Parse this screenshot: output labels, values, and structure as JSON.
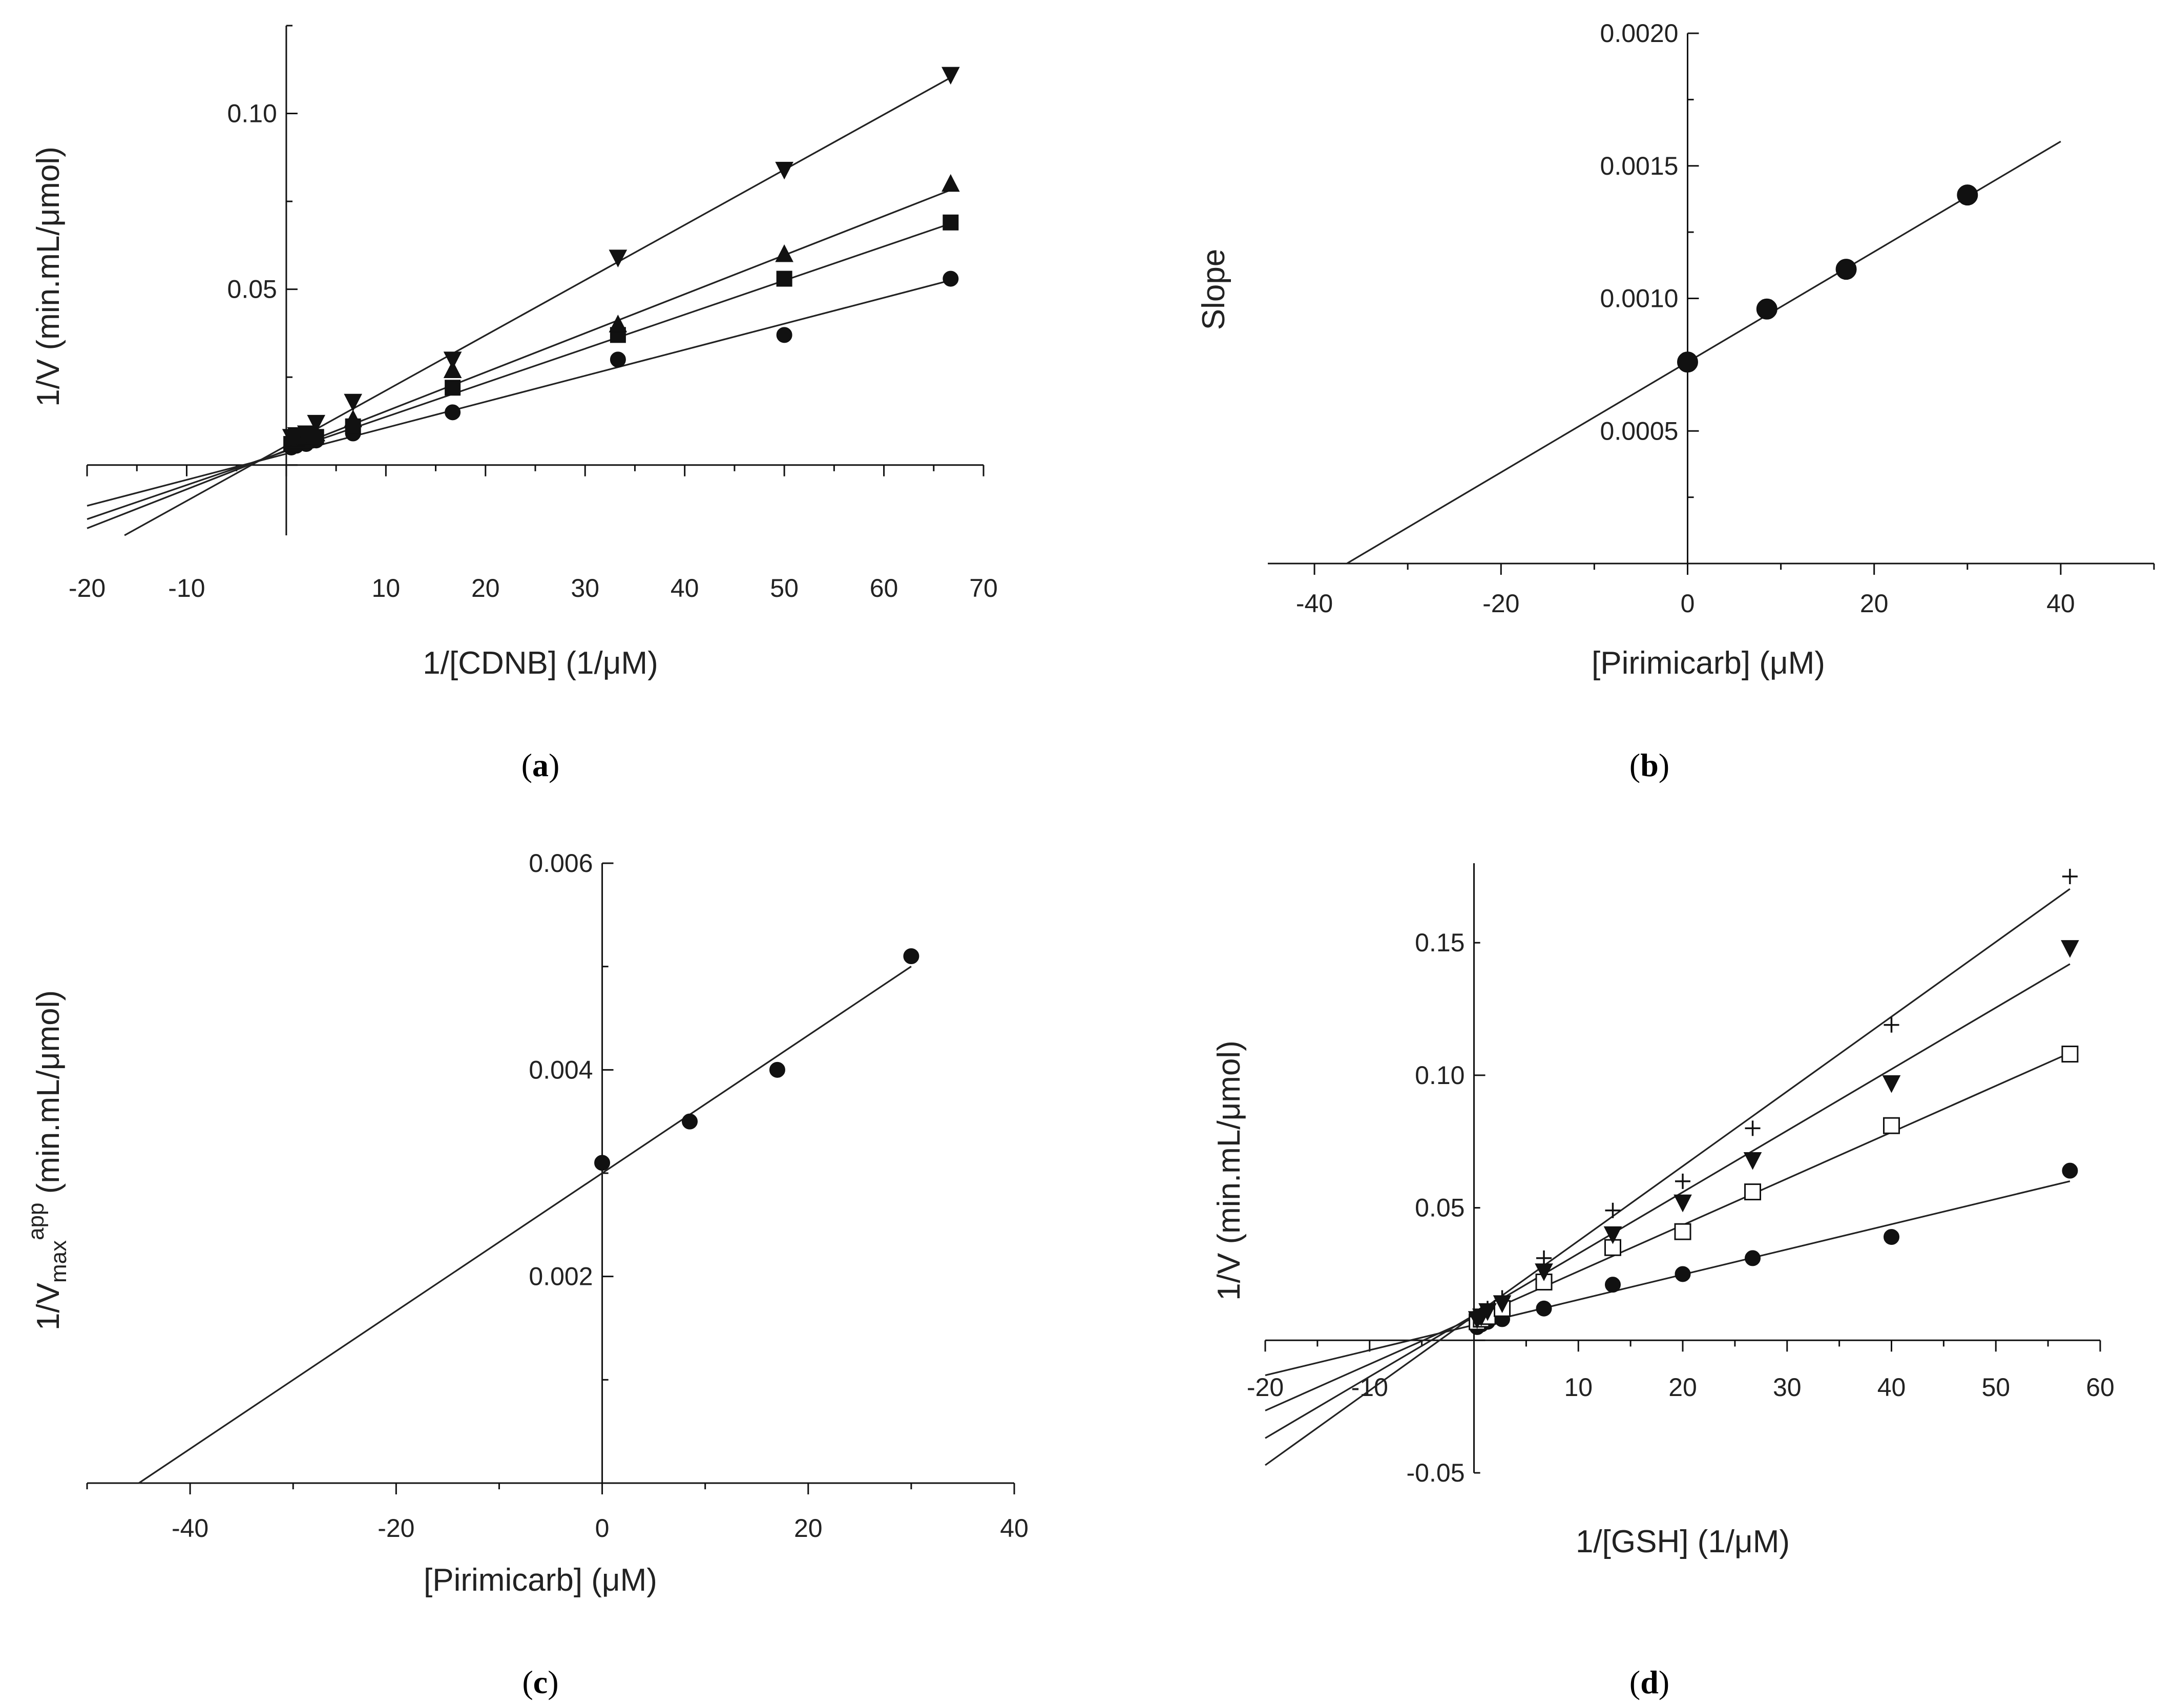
{
  "chart_data": [
    {
      "panel": "a",
      "type": "scatter",
      "caption_open": "(",
      "caption_letter": "a",
      "caption_close": ")",
      "xlabel": "1/[CDNB] (1/μM)",
      "ylabel": "1/V (min.mL/μmol)",
      "xlim": [
        -20,
        70
      ],
      "ylim": [
        -0.02,
        0.125
      ],
      "xticks": [
        -20,
        -10,
        10,
        20,
        30,
        40,
        50,
        60,
        70
      ],
      "yticks": [
        0.05,
        0.1
      ],
      "xtick_labels": [
        "-20",
        "-10",
        "10",
        "20",
        "30",
        "40",
        "50",
        "60",
        "70"
      ],
      "ytick_labels": [
        "0.05",
        "0.10"
      ],
      "series": [
        {
          "marker": "circle",
          "fit": [
            0.00074,
            0.0032
          ],
          "x": [
            0.5,
            1,
            2,
            3,
            6.7,
            16.7,
            33.3,
            50,
            66.7
          ],
          "y": [
            0.005,
            0.0055,
            0.006,
            0.007,
            0.009,
            0.015,
            0.03,
            0.037,
            0.053
          ]
        },
        {
          "marker": "square",
          "fit": [
            0.00097,
            0.004
          ],
          "x": [
            0.5,
            1,
            2,
            3,
            6.7,
            16.7,
            33.3,
            50,
            66.7
          ],
          "y": [
            0.006,
            0.0065,
            0.007,
            0.008,
            0.011,
            0.022,
            0.037,
            0.053,
            0.069
          ]
        },
        {
          "marker": "triangle-up",
          "fit": [
            0.00111,
            0.0042
          ],
          "x": [
            0.5,
            1,
            2,
            3,
            6.7,
            16.7,
            33.3,
            50,
            66.7
          ],
          "y": [
            0.007,
            0.0075,
            0.008,
            0.009,
            0.013,
            0.027,
            0.04,
            0.06,
            0.08
          ]
        },
        {
          "marker": "triangle-down",
          "fit": [
            0.00157,
            0.0055
          ],
          "x": [
            0.5,
            1,
            2,
            3,
            6.7,
            16.7,
            33.3,
            50,
            66.7
          ],
          "y": [
            0.008,
            0.0085,
            0.009,
            0.012,
            0.018,
            0.03,
            0.059,
            0.084,
            0.111
          ]
        }
      ]
    },
    {
      "panel": "b",
      "type": "scatter",
      "caption_open": "(",
      "caption_letter": "b",
      "caption_close": ")",
      "xlabel": "[Pirimicarb] (μM)",
      "ylabel": "Slope",
      "xlim": [
        -45,
        50
      ],
      "ylim": [
        0,
        0.002
      ],
      "xticks": [
        -40,
        -20,
        0,
        20,
        40
      ],
      "yticks": [
        0.0005,
        0.001,
        0.0015,
        0.002
      ],
      "xtick_labels": [
        "-40",
        "-20",
        "0",
        "20",
        "40"
      ],
      "ytick_labels": [
        "0.0005",
        "0.0010",
        "0.0015",
        "0.0020"
      ],
      "series": [
        {
          "marker": "circle-large",
          "fit": [
            2.08e-05,
            0.00076
          ],
          "fit_range": [
            -36.5,
            40
          ],
          "x": [
            0,
            8.5,
            17,
            30
          ],
          "y": [
            0.00076,
            0.00096,
            0.00111,
            0.00139
          ]
        }
      ]
    },
    {
      "panel": "c",
      "type": "scatter",
      "caption_open": "(",
      "caption_letter": "c",
      "caption_close": ")",
      "xlabel": "[Pirimicarb] (μM)",
      "ylabel": "1/V",
      "ylabel_sub": "max",
      "ylabel_sup": "app",
      "ylabel_rest": " (min.mL/μmol)",
      "xlim": [
        -50,
        40
      ],
      "ylim": [
        0,
        0.006
      ],
      "xticks": [
        -40,
        -20,
        0,
        20,
        40
      ],
      "yticks": [
        0.002,
        0.004,
        0.006
      ],
      "xtick_labels": [
        "-40",
        "-20",
        "0",
        "20",
        "40"
      ],
      "ytick_labels": [
        "0.002",
        "0.004",
        "0.006"
      ],
      "series": [
        {
          "marker": "circle",
          "fit": [
            6.67e-05,
            0.003
          ],
          "fit_range": [
            -45,
            30
          ],
          "x": [
            0,
            8.5,
            17,
            30
          ],
          "y": [
            0.0031,
            0.0035,
            0.004,
            0.0051
          ]
        }
      ]
    },
    {
      "panel": "d",
      "type": "scatter",
      "caption_open": "(",
      "caption_letter": "d",
      "caption_close": ")",
      "xlabel": "1/[GSH] (1/μM)",
      "ylabel": "1/V (min.mL/μmol)",
      "xlim": [
        -20,
        60
      ],
      "ylim": [
        -0.05,
        0.18
      ],
      "xticks": [
        -20,
        -10,
        10,
        20,
        30,
        40,
        50,
        60
      ],
      "yticks": [
        -0.05,
        0.05,
        0.1,
        0.15
      ],
      "xtick_labels": [
        "-20",
        "-10",
        "10",
        "20",
        "30",
        "40",
        "50",
        "60"
      ],
      "ytick_labels": [
        "-0.05",
        "0.05",
        "0.10",
        "0.15"
      ],
      "series": [
        {
          "marker": "circle",
          "fit": [
            0.00095,
            0.0058
          ],
          "x": [
            0.3,
            0.7,
            1.3,
            2.7,
            6.7,
            13.3,
            20,
            26.7,
            40,
            57.1
          ],
          "y": [
            0.005,
            0.006,
            0.007,
            0.008,
            0.012,
            0.021,
            0.025,
            0.031,
            0.039,
            0.064
          ]
        },
        {
          "marker": "square-open",
          "fit": [
            0.00175,
            0.0085
          ],
          "x": [
            0.3,
            0.7,
            1.3,
            2.7,
            6.7,
            13.3,
            20,
            26.7,
            40,
            57.1
          ],
          "y": [
            0.007,
            0.008,
            0.009,
            0.012,
            0.022,
            0.035,
            0.041,
            0.056,
            0.081,
            0.108
          ]
        },
        {
          "marker": "triangle-down",
          "fit": [
            0.00232,
            0.0095
          ],
          "x": [
            0.3,
            0.7,
            1.3,
            2.7,
            6.7,
            13.3,
            20,
            26.7,
            40,
            57.1
          ],
          "y": [
            0.008,
            0.009,
            0.011,
            0.014,
            0.026,
            0.04,
            0.052,
            0.068,
            0.097,
            0.148
          ]
        },
        {
          "marker": "plus",
          "fit": [
            0.00282,
            0.0093
          ],
          "x": [
            0.3,
            0.7,
            1.3,
            2.7,
            6.7,
            13.3,
            20,
            26.7,
            40,
            57.1
          ],
          "y": [
            0.009,
            0.01,
            0.012,
            0.016,
            0.031,
            0.049,
            0.06,
            0.08,
            0.119,
            0.175
          ]
        }
      ]
    }
  ]
}
